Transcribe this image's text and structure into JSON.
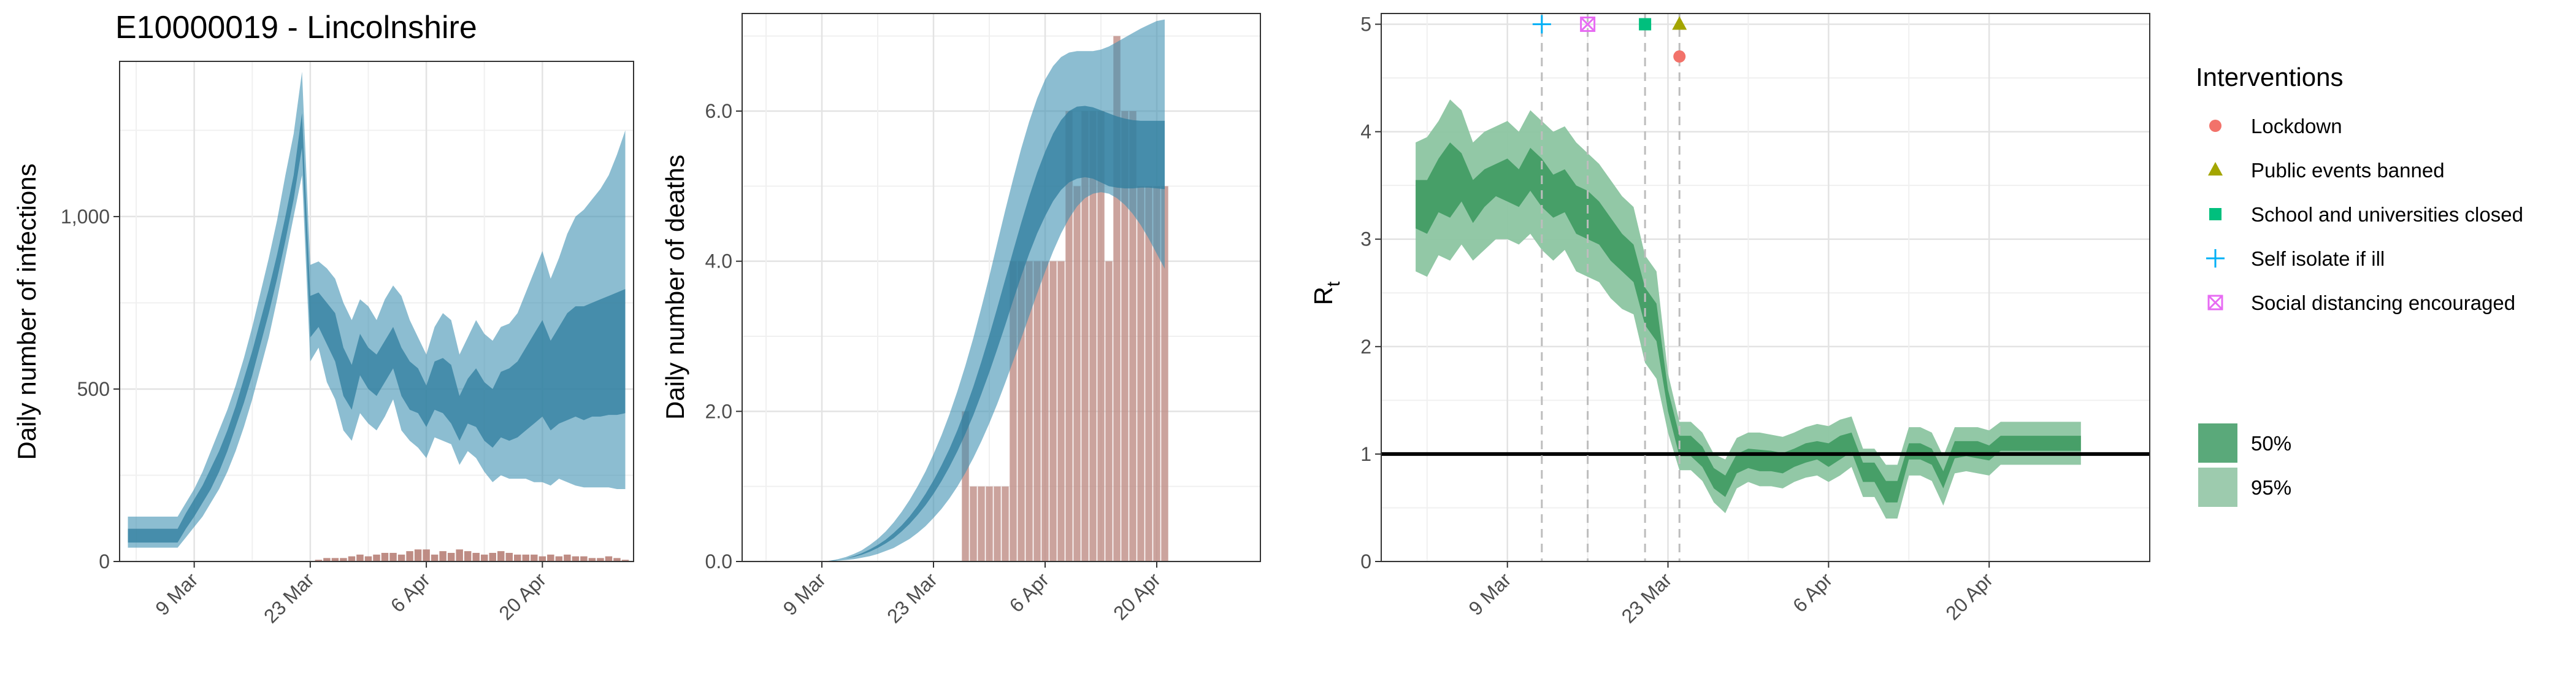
{
  "title": "E10000019 - Lincolnshire",
  "colors": {
    "infection_band": "#3f91b3",
    "infection_inner": "#2f7d9d",
    "bars": "#be8c84",
    "rt_50": "#3f9a62",
    "rt_95": "#8cc5a1",
    "lockdown": "#f2726a",
    "public_events": "#a3a500",
    "schools": "#00bf7d",
    "self_isolate": "#00b0f6",
    "social_distancing": "#e76bf3"
  },
  "x_ticks": [
    "9 Mar",
    "23 Mar",
    "6 Apr",
    "20 Apr"
  ],
  "legend": {
    "title": "Interventions",
    "items": [
      {
        "label": "Lockdown",
        "icon": "circle-icon",
        "color": "#f2726a"
      },
      {
        "label": "Public events banned",
        "icon": "triangle-icon",
        "color": "#a3a500"
      },
      {
        "label": "School and universities closed",
        "icon": "square-icon",
        "color": "#00bf7d"
      },
      {
        "label": "Self isolate if ill",
        "icon": "plus-icon",
        "color": "#00b0f6"
      },
      {
        "label": "Social distancing encouraged",
        "icon": "boxed-x-icon",
        "color": "#e76bf3"
      }
    ],
    "bands": [
      {
        "label": "50%",
        "color": "#5aa97a"
      },
      {
        "label": "95%",
        "color": "#9dcbae"
      }
    ]
  },
  "chart_data": [
    {
      "type": "area",
      "ylabel": "Daily number of infections",
      "xlabel": "",
      "x": [
        "2020-03-01",
        "2020-03-02",
        "2020-03-03",
        "2020-03-04",
        "2020-03-05",
        "2020-03-06",
        "2020-03-07",
        "2020-03-08",
        "2020-03-09",
        "2020-03-10",
        "2020-03-11",
        "2020-03-12",
        "2020-03-13",
        "2020-03-14",
        "2020-03-15",
        "2020-03-16",
        "2020-03-17",
        "2020-03-18",
        "2020-03-19",
        "2020-03-20",
        "2020-03-21",
        "2020-03-22",
        "2020-03-23",
        "2020-03-24",
        "2020-03-25",
        "2020-03-26",
        "2020-03-27",
        "2020-03-28",
        "2020-03-29",
        "2020-03-30",
        "2020-03-31",
        "2020-04-01",
        "2020-04-02",
        "2020-04-03",
        "2020-04-04",
        "2020-04-05",
        "2020-04-06",
        "2020-04-07",
        "2020-04-08",
        "2020-04-09",
        "2020-04-10",
        "2020-04-11",
        "2020-04-12",
        "2020-04-13",
        "2020-04-14",
        "2020-04-15",
        "2020-04-16",
        "2020-04-17",
        "2020-04-18",
        "2020-04-19",
        "2020-04-20",
        "2020-04-21",
        "2020-04-22",
        "2020-04-23",
        "2020-04-24",
        "2020-04-25",
        "2020-04-26",
        "2020-04-27",
        "2020-04-28",
        "2020-04-29",
        "2020-04-30"
      ],
      "ylim": [
        0,
        1450
      ],
      "y_ticks": [
        0,
        500,
        1000
      ],
      "y_tick_labels": [
        "0",
        "500",
        "1,000"
      ],
      "series": [
        {
          "band": "95",
          "lower": [
            40,
            40,
            40,
            40,
            40,
            40,
            40,
            70,
            100,
            130,
            170,
            210,
            260,
            320,
            390,
            470,
            560,
            650,
            760,
            880,
            1000,
            1120,
            580,
            620,
            520,
            470,
            380,
            350,
            430,
            400,
            380,
            420,
            470,
            380,
            350,
            330,
            300,
            360,
            350,
            340,
            280,
            320,
            300,
            260,
            230,
            250,
            240,
            240,
            240,
            230,
            230,
            220,
            240,
            230,
            220,
            215,
            215,
            215,
            215,
            210,
            210
          ],
          "upper": [
            130,
            130,
            130,
            130,
            130,
            130,
            130,
            170,
            210,
            260,
            320,
            380,
            440,
            510,
            590,
            680,
            780,
            880,
            990,
            1120,
            1240,
            1420,
            860,
            870,
            850,
            820,
            750,
            700,
            760,
            740,
            700,
            760,
            800,
            770,
            700,
            650,
            600,
            680,
            720,
            700,
            600,
            650,
            700,
            660,
            640,
            680,
            690,
            720,
            780,
            840,
            900,
            820,
            880,
            950,
            1000,
            1020,
            1050,
            1080,
            1120,
            1180,
            1250
          ]
        },
        {
          "band": "50",
          "lower": [
            55,
            55,
            55,
            55,
            55,
            55,
            55,
            95,
            130,
            170,
            210,
            260,
            320,
            390,
            460,
            540,
            630,
            720,
            820,
            930,
            1050,
            1200,
            650,
            680,
            630,
            580,
            480,
            440,
            540,
            500,
            480,
            520,
            560,
            480,
            440,
            430,
            390,
            440,
            430,
            400,
            350,
            400,
            390,
            350,
            330,
            360,
            350,
            360,
            380,
            400,
            420,
            380,
            400,
            410,
            420,
            410,
            420,
            420,
            425,
            425,
            430
          ],
          "upper": [
            95,
            95,
            95,
            95,
            95,
            95,
            95,
            140,
            180,
            220,
            270,
            320,
            380,
            450,
            530,
            610,
            700,
            790,
            890,
            1000,
            1120,
            1300,
            770,
            780,
            750,
            720,
            620,
            570,
            660,
            620,
            600,
            640,
            680,
            620,
            580,
            560,
            510,
            580,
            590,
            570,
            480,
            530,
            560,
            520,
            500,
            550,
            560,
            580,
            620,
            660,
            700,
            640,
            680,
            720,
            740,
            740,
            750,
            760,
            770,
            780,
            790
          ]
        }
      ],
      "observed": [
        0,
        0,
        0,
        0,
        0,
        0,
        0,
        0,
        0,
        0,
        0,
        0,
        0,
        0,
        0,
        0,
        0,
        0,
        0,
        0,
        0,
        0,
        0,
        5,
        10,
        10,
        10,
        15,
        20,
        15,
        20,
        25,
        25,
        20,
        30,
        35,
        35,
        20,
        30,
        25,
        35,
        30,
        25,
        20,
        25,
        30,
        25,
        20,
        20,
        20,
        15,
        20,
        15,
        20,
        15,
        15,
        10,
        10,
        15,
        10,
        5
      ],
      "observed_label": ""
    },
    {
      "type": "area",
      "ylabel": "Daily number of deaths",
      "xlabel": "",
      "x_start": "2020-03-09",
      "ylim": [
        0,
        7.3
      ],
      "y_ticks": [
        0,
        2,
        4,
        6
      ],
      "y_tick_labels": [
        "0.0",
        "2.0",
        "4.0",
        "6.0"
      ],
      "series": [
        {
          "band": "95",
          "lower": [
            0,
            0,
            0.01,
            0.02,
            0.03,
            0.05,
            0.07,
            0.1,
            0.14,
            0.18,
            0.24,
            0.3,
            0.38,
            0.47,
            0.58,
            0.7,
            0.84,
            1.0,
            1.18,
            1.38,
            1.6,
            1.84,
            2.1,
            2.38,
            2.67,
            2.97,
            3.27,
            3.57,
            3.86,
            4.13,
            4.37,
            4.57,
            4.73,
            4.84,
            4.9,
            4.92,
            4.9,
            4.84,
            4.75,
            4.63,
            4.48,
            4.3,
            4.1,
            3.9
          ],
          "upper": [
            0,
            0.01,
            0.03,
            0.06,
            0.1,
            0.15,
            0.22,
            0.3,
            0.4,
            0.52,
            0.66,
            0.82,
            1.0,
            1.2,
            1.43,
            1.68,
            1.96,
            2.27,
            2.61,
            2.98,
            3.38,
            3.8,
            4.24,
            4.68,
            5.1,
            5.5,
            5.86,
            6.17,
            6.42,
            6.6,
            6.72,
            6.78,
            6.8,
            6.8,
            6.8,
            6.82,
            6.86,
            6.92,
            6.98,
            7.04,
            7.1,
            7.15,
            7.2,
            7.22
          ]
        },
        {
          "band": "50",
          "lower": [
            0,
            0,
            0.02,
            0.04,
            0.06,
            0.09,
            0.13,
            0.18,
            0.24,
            0.31,
            0.4,
            0.5,
            0.62,
            0.75,
            0.9,
            1.07,
            1.26,
            1.47,
            1.7,
            1.95,
            2.23,
            2.52,
            2.83,
            3.15,
            3.48,
            3.8,
            4.1,
            4.37,
            4.6,
            4.8,
            4.95,
            5.05,
            5.1,
            5.12,
            5.1,
            5.05,
            5.0,
            4.98,
            4.97,
            4.97,
            4.98,
            4.98,
            4.97,
            4.96
          ],
          "upper": [
            0,
            0.01,
            0.02,
            0.04,
            0.07,
            0.11,
            0.16,
            0.22,
            0.29,
            0.38,
            0.48,
            0.6,
            0.74,
            0.9,
            1.08,
            1.28,
            1.5,
            1.75,
            2.03,
            2.33,
            2.66,
            3.01,
            3.38,
            3.76,
            4.14,
            4.51,
            4.86,
            5.18,
            5.46,
            5.7,
            5.88,
            6.0,
            6.06,
            6.07,
            6.05,
            6.01,
            5.97,
            5.93,
            5.9,
            5.88,
            5.87,
            5.87,
            5.87,
            5.87
          ]
        }
      ],
      "observed": [
        0,
        0,
        0,
        0,
        0,
        0,
        0,
        0,
        0,
        0,
        0,
        0,
        0,
        0,
        0,
        0,
        0,
        0,
        2,
        1,
        1,
        1,
        1,
        1,
        4,
        4,
        4,
        4,
        4,
        4,
        4,
        6,
        5,
        6,
        6,
        6,
        4,
        7,
        6,
        6,
        5,
        5,
        5,
        5
      ],
      "observed_label": ""
    },
    {
      "type": "area",
      "ylabel": "R",
      "ylabel_sub": "t",
      "xlabel": "",
      "x_start": "2020-03-01",
      "ylim": [
        0,
        5.1
      ],
      "y_ticks": [
        0,
        1,
        2,
        3,
        4,
        5
      ],
      "y_tick_labels": [
        "0",
        "1",
        "2",
        "3",
        "4",
        "5"
      ],
      "reference_line": 1,
      "series": [
        {
          "band": "95",
          "lower": [
            2.7,
            2.65,
            2.85,
            2.8,
            2.95,
            2.8,
            2.9,
            3.0,
            3.0,
            2.95,
            3.05,
            2.9,
            2.8,
            2.9,
            2.7,
            2.65,
            2.6,
            2.45,
            2.35,
            2.3,
            1.85,
            1.7,
            1.2,
            0.85,
            0.85,
            0.75,
            0.55,
            0.45,
            0.68,
            0.74,
            0.7,
            0.7,
            0.68,
            0.74,
            0.78,
            0.8,
            0.74,
            0.8,
            0.88,
            0.6,
            0.6,
            0.4,
            0.4,
            0.8,
            0.8,
            0.75,
            0.52,
            0.82,
            0.84,
            0.82,
            0.8,
            0.9,
            0.9,
            0.9,
            0.9,
            0.9,
            0.9,
            0.9,
            0.9
          ],
          "upper": [
            3.9,
            3.95,
            4.1,
            4.3,
            4.2,
            3.9,
            4.0,
            4.05,
            4.1,
            4.0,
            4.2,
            4.1,
            4.0,
            4.05,
            3.9,
            3.8,
            3.7,
            3.55,
            3.4,
            3.3,
            2.85,
            2.7,
            1.75,
            1.3,
            1.3,
            1.2,
            1.0,
            0.95,
            1.15,
            1.2,
            1.2,
            1.18,
            1.16,
            1.2,
            1.25,
            1.28,
            1.26,
            1.32,
            1.35,
            1.05,
            1.05,
            0.9,
            0.9,
            1.25,
            1.25,
            1.2,
            0.98,
            1.25,
            1.25,
            1.25,
            1.22,
            1.3,
            1.3,
            1.3,
            1.3,
            1.3,
            1.3,
            1.3,
            1.3
          ]
        },
        {
          "band": "50",
          "lower": [
            3.1,
            3.05,
            3.25,
            3.2,
            3.35,
            3.15,
            3.3,
            3.4,
            3.35,
            3.3,
            3.45,
            3.3,
            3.2,
            3.25,
            3.05,
            3.0,
            2.95,
            2.8,
            2.7,
            2.6,
            2.2,
            2.05,
            1.4,
            0.98,
            0.98,
            0.88,
            0.68,
            0.6,
            0.82,
            0.87,
            0.84,
            0.84,
            0.82,
            0.88,
            0.92,
            0.95,
            0.88,
            0.95,
            1.02,
            0.74,
            0.74,
            0.55,
            0.55,
            0.95,
            0.95,
            0.9,
            0.68,
            0.96,
            0.98,
            0.96,
            0.94,
            1.03,
            1.03,
            1.03,
            1.03,
            1.03,
            1.03,
            1.03,
            1.03
          ],
          "upper": [
            3.55,
            3.55,
            3.75,
            3.9,
            3.8,
            3.55,
            3.65,
            3.7,
            3.75,
            3.65,
            3.85,
            3.75,
            3.6,
            3.65,
            3.5,
            3.45,
            3.35,
            3.2,
            3.05,
            2.95,
            2.55,
            2.4,
            1.6,
            1.17,
            1.17,
            1.07,
            0.87,
            0.8,
            1.0,
            1.05,
            1.04,
            1.03,
            1.01,
            1.05,
            1.1,
            1.12,
            1.1,
            1.17,
            1.2,
            0.92,
            0.92,
            0.75,
            0.75,
            1.1,
            1.1,
            1.05,
            0.84,
            1.12,
            1.12,
            1.12,
            1.08,
            1.17,
            1.17,
            1.17,
            1.17,
            1.17,
            1.17,
            1.17,
            1.17
          ]
        }
      ],
      "interventions": [
        {
          "name": "Self isolate if ill",
          "date": "2020-03-12",
          "shape": "plus",
          "y": 5.0
        },
        {
          "name": "Social distancing encouraged",
          "date": "2020-03-16",
          "shape": "boxed-x",
          "y": 5.0
        },
        {
          "name": "School and universities closed",
          "date": "2020-03-21",
          "shape": "square",
          "y": 5.0
        },
        {
          "name": "Public events banned",
          "date": "2020-03-24",
          "shape": "triangle",
          "y": 5.0
        },
        {
          "name": "Lockdown",
          "date": "2020-03-24",
          "shape": "circle",
          "y": 4.7
        }
      ]
    }
  ]
}
